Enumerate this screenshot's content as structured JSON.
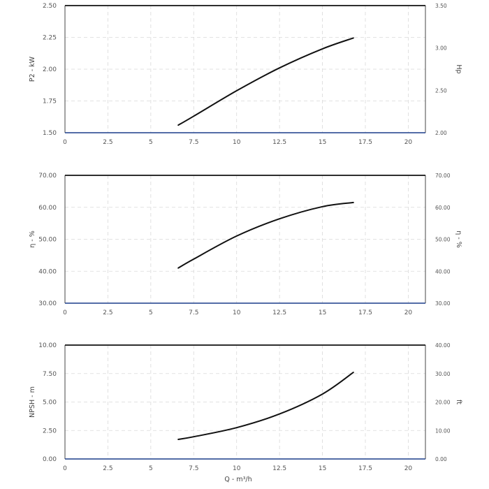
{
  "chart_data": [
    {
      "type": "line",
      "ylabel": "P2 - kW",
      "y2label": "Hp",
      "xlim": [
        0,
        21
      ],
      "ylim": [
        1.5,
        2.5
      ],
      "y2lim": [
        2.0,
        3.5
      ],
      "xticks": [
        "0",
        "2.5",
        "5",
        "7.5",
        "10",
        "12.5",
        "15",
        "17.5",
        "20"
      ],
      "yticks": [
        "1.50",
        "1.75",
        "2.00",
        "2.25",
        "2.50"
      ],
      "y2ticks": [
        "2.00",
        "2.50",
        "3.00",
        "3.50"
      ],
      "grid": true,
      "series": [
        {
          "x": [
            6.6,
            7.5,
            10,
            12.5,
            15,
            16.8
          ],
          "values": [
            1.56,
            1.63,
            1.83,
            2.01,
            2.16,
            2.245
          ]
        }
      ]
    },
    {
      "type": "line",
      "ylabel": "η - %",
      "y2label": "η - %",
      "xlim": [
        0,
        21
      ],
      "ylim": [
        30,
        70
      ],
      "y2lim": [
        30,
        70
      ],
      "xticks": [
        "0",
        "2.5",
        "5",
        "7.5",
        "10",
        "12.5",
        "15",
        "17.5",
        "20"
      ],
      "yticks": [
        "30.00",
        "40.00",
        "50.00",
        "60.00",
        "70.00"
      ],
      "y2ticks": [
        "30.00",
        "40.00",
        "50.00",
        "60.00",
        "70.00"
      ],
      "grid": true,
      "series": [
        {
          "x": [
            6.6,
            7.5,
            10,
            12.5,
            15,
            16.8
          ],
          "values": [
            41,
            43.8,
            51,
            56.4,
            60.2,
            61.5
          ]
        }
      ]
    },
    {
      "type": "line",
      "xlabel": "Q - m³/h",
      "ylabel": "NPSH - m",
      "y2label": "ft",
      "xlim": [
        0,
        21
      ],
      "ylim": [
        0,
        10
      ],
      "y2lim": [
        0,
        40
      ],
      "xticks": [
        "0",
        "2.5",
        "5",
        "7.5",
        "10",
        "12.5",
        "15",
        "17.5",
        "20"
      ],
      "yticks": [
        "0.00",
        "2.50",
        "5.00",
        "7.50",
        "10.00"
      ],
      "y2ticks": [
        "0.00",
        "10.00",
        "20.00",
        "30.00",
        "40.00"
      ],
      "grid": true,
      "series": [
        {
          "x": [
            6.6,
            7.5,
            10,
            12.5,
            15,
            16.8
          ],
          "values": [
            1.72,
            1.95,
            2.75,
            3.95,
            5.7,
            7.6
          ]
        }
      ]
    }
  ]
}
